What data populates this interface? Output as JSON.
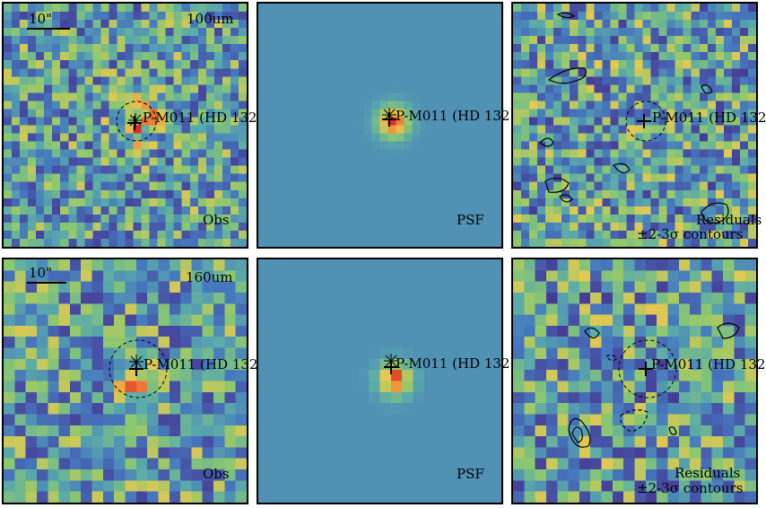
{
  "source_name": "P-M011 (HD 132",
  "scale_bar": "10\"",
  "rows": [
    {
      "band": "100um",
      "panels": [
        {
          "kind": "obs",
          "caption": "Obs"
        },
        {
          "kind": "psf",
          "caption": "PSF"
        },
        {
          "kind": "res",
          "caption": "Residuals",
          "caption2": "±2-3σ contours"
        }
      ]
    },
    {
      "band": "160um",
      "panels": [
        {
          "kind": "obs",
          "caption": "Obs"
        },
        {
          "kind": "psf",
          "caption": "PSF"
        },
        {
          "kind": "res",
          "caption": "Residuals",
          "caption2": "±2-3σ contours"
        }
      ]
    }
  ]
}
